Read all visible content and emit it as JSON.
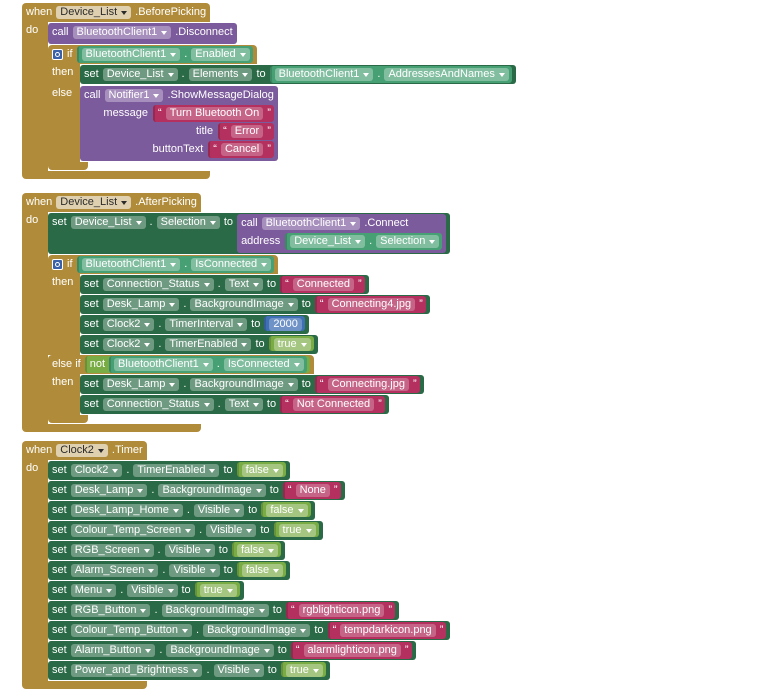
{
  "labels": {
    "when": "when",
    "do": "do",
    "call": "call",
    "set": "set",
    "to": "to",
    "if": "if",
    "then": "then",
    "else": "else",
    "else_if": "else if",
    "not": "not",
    "dot": ".",
    "open_quote": "“",
    "close_quote": "”"
  },
  "events": [
    {
      "component": "Device_List",
      "event": ".BeforePicking",
      "do": [
        {
          "component": "BluetoothClient1",
          "method": ".Disconnect"
        },
        {
          "condition": {
            "component": "BluetoothClient1",
            "property": "Enabled"
          },
          "then": [
            {
              "component": "Device_List",
              "property": "Elements",
              "value": {
                "component": "BluetoothClient1",
                "property": "AddressesAndNames"
              }
            }
          ],
          "else": [
            {
              "component": "Notifier1",
              "method": ".ShowMessageDialog",
              "args": [
                {
                  "name": "message",
                  "value": {
                    "text": "Turn Bluetooth On"
                  }
                },
                {
                  "name": "title",
                  "value": {
                    "text": "Error"
                  }
                },
                {
                  "name": "buttonText",
                  "value": {
                    "text": "Cancel"
                  }
                }
              ]
            }
          ]
        }
      ]
    },
    {
      "component": "Device_List",
      "event": ".AfterPicking",
      "do": [
        {
          "component": "Device_List",
          "property": "Selection",
          "value": {
            "component": "BluetoothClient1",
            "method": ".Connect",
            "args": [
              {
                "name": "address",
                "value": {
                  "component": "Device_List",
                  "property": "Selection"
                }
              }
            ]
          }
        },
        {
          "condition": {
            "component": "BluetoothClient1",
            "property": "IsConnected"
          },
          "then": [
            {
              "component": "Connection_Status",
              "property": "Text",
              "value": {
                "text": "Connected"
              }
            },
            {
              "component": "Desk_Lamp",
              "property": "BackgroundImage",
              "value": {
                "text": "Connecting4.jpg"
              }
            },
            {
              "component": "Clock2",
              "property": "TimerInterval",
              "value": {
                "number": 2000
              }
            },
            {
              "component": "Clock2",
              "property": "TimerEnabled",
              "value": {
                "bool": "true"
              }
            }
          ],
          "else_if": {
            "condition": {
              "not": {
                "component": "BluetoothClient1",
                "property": "IsConnected"
              }
            },
            "then": [
              {
                "component": "Desk_Lamp",
                "property": "BackgroundImage",
                "value": {
                  "text": "Connecting.jpg"
                }
              },
              {
                "component": "Connection_Status",
                "property": "Text",
                "value": {
                  "text": "Not Connected"
                }
              }
            ]
          }
        }
      ]
    },
    {
      "component": "Clock2",
      "event": ".Timer",
      "do": [
        {
          "component": "Clock2",
          "property": "TimerEnabled",
          "value": {
            "bool": "false"
          }
        },
        {
          "component": "Desk_Lamp",
          "property": "BackgroundImage",
          "value": {
            "text": "None"
          }
        },
        {
          "component": "Desk_Lamp_Home",
          "property": "Visible",
          "value": {
            "bool": "false"
          }
        },
        {
          "component": "Colour_Temp_Screen",
          "property": "Visible",
          "value": {
            "bool": "true"
          }
        },
        {
          "component": "RGB_Screen",
          "property": "Visible",
          "value": {
            "bool": "false"
          }
        },
        {
          "component": "Alarm_Screen",
          "property": "Visible",
          "value": {
            "bool": "false"
          }
        },
        {
          "component": "Menu",
          "property": "Visible",
          "value": {
            "bool": "true"
          }
        },
        {
          "component": "RGB_Button",
          "property": "BackgroundImage",
          "value": {
            "text": "rgblighticon.png"
          }
        },
        {
          "component": "Colour_Temp_Button",
          "property": "BackgroundImage",
          "value": {
            "text": "tempdarkicon.png"
          }
        },
        {
          "component": "Alarm_Button",
          "property": "BackgroundImage",
          "value": {
            "text": "alarmlighticon.png"
          }
        },
        {
          "component": "Power_and_Brightness",
          "property": "Visible",
          "value": {
            "bool": "true"
          }
        }
      ]
    }
  ]
}
